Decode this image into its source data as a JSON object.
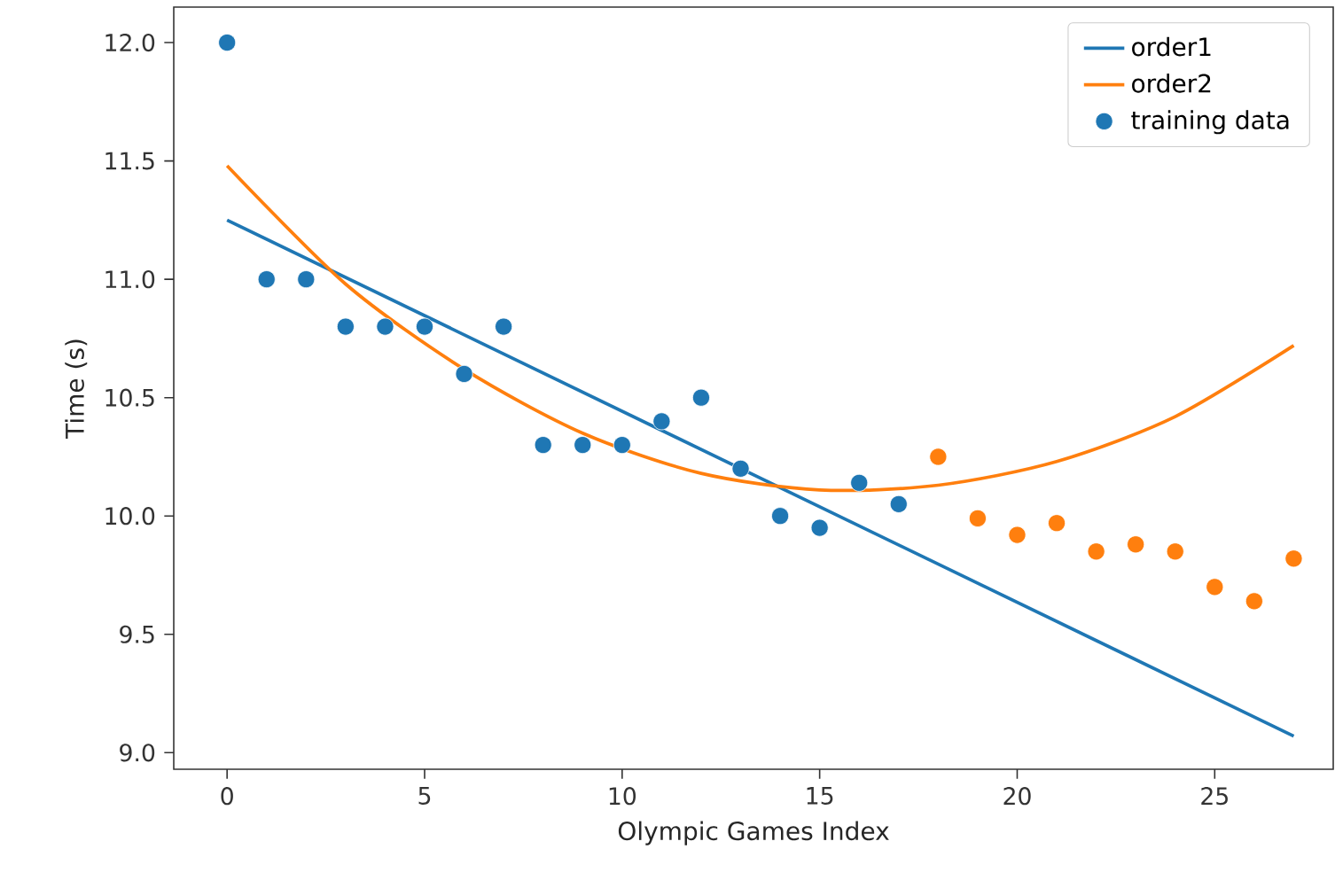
{
  "chart_data": {
    "type": "scatter",
    "xlabel": "Olympic Games Index",
    "ylabel": "Time (s)",
    "xlim": [
      -1.35,
      28.0
    ],
    "ylim": [
      8.93,
      12.15
    ],
    "xticks": [
      0,
      5,
      10,
      15,
      20,
      25
    ],
    "yticks": [
      {
        "value": 9,
        "label": "9.0"
      },
      {
        "value": 9.5,
        "label": "9.5"
      },
      {
        "value": 10,
        "label": "10.0"
      },
      {
        "value": 10.5,
        "label": "10.5"
      },
      {
        "value": 11,
        "label": "11.0"
      },
      {
        "value": 11.5,
        "label": "11.5"
      },
      {
        "value": 12,
        "label": "12.0"
      }
    ],
    "legend": "top right",
    "marker": "circle",
    "series": [
      {
        "name": "order1",
        "type": "line",
        "marker": "none",
        "color": "#1f77b4",
        "x": [
          0,
          27
        ],
        "values": [
          11.25,
          9.07
        ]
      },
      {
        "name": "order2",
        "type": "line",
        "marker": "none",
        "color": "#ff7f0e",
        "x": [
          0,
          3,
          6,
          9,
          12,
          15,
          18,
          21,
          24,
          27
        ],
        "values": [
          11.48,
          10.98,
          10.62,
          10.35,
          10.18,
          10.11,
          10.13,
          10.23,
          10.42,
          10.72
        ]
      },
      {
        "name": "training data",
        "color": "#1f77b4",
        "x": [
          0,
          1,
          2,
          3,
          4,
          5,
          6,
          7,
          8,
          9,
          10,
          11,
          12,
          13,
          14,
          15,
          16,
          17
        ],
        "values": [
          12.0,
          11.0,
          11.0,
          10.8,
          10.8,
          10.8,
          10.6,
          10.8,
          10.3,
          10.3,
          10.3,
          10.4,
          10.5,
          10.2,
          10.0,
          9.95,
          10.14,
          10.05
        ]
      },
      {
        "color": "#ff7f0e",
        "x": [
          18,
          19,
          20,
          21,
          22,
          23,
          24,
          25,
          26,
          27
        ],
        "values": [
          10.25,
          9.99,
          9.92,
          9.97,
          9.85,
          9.88,
          9.85,
          9.7,
          9.64,
          9.82
        ]
      }
    ]
  }
}
